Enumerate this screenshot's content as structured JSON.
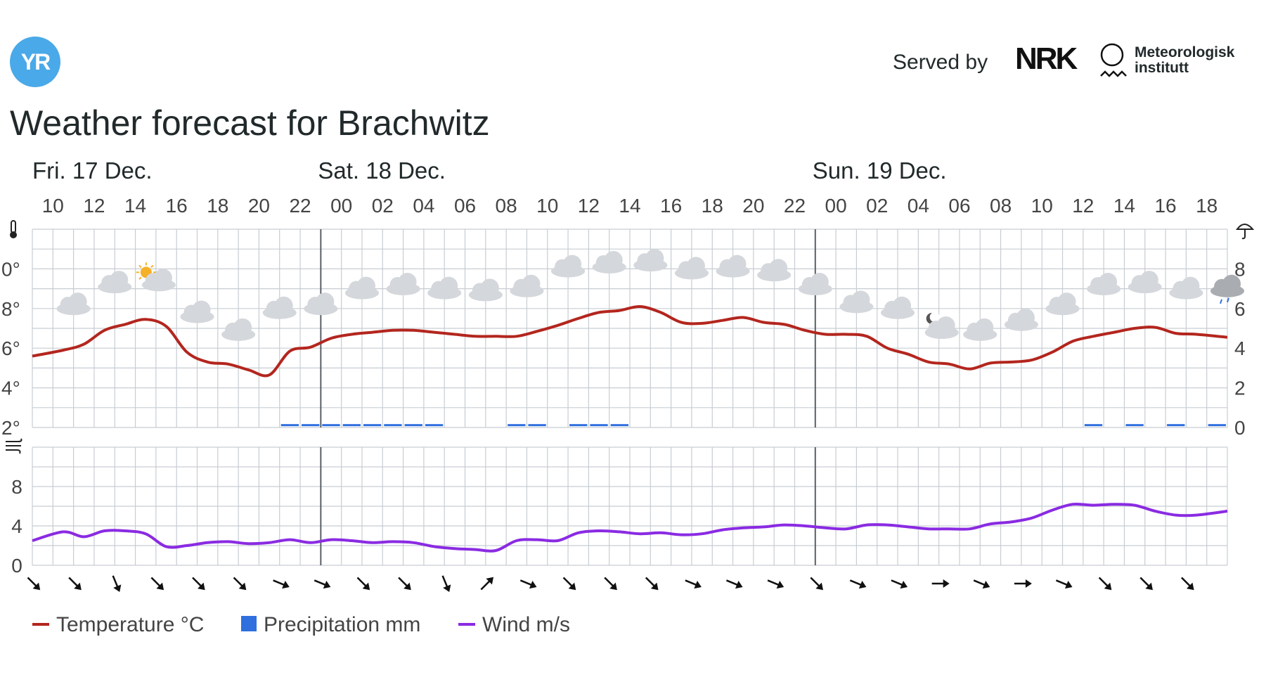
{
  "header": {
    "served_by": "Served by",
    "nrk_logo_text": "NRK",
    "met_line1": "Meteorologisk",
    "met_line2": "institutt",
    "yr_logo_text": "YR",
    "title": "Weather forecast for Brachwitz"
  },
  "colors": {
    "temperature": "#b3261e",
    "precipitation": "#2f6fde",
    "wind": "#8a2be2",
    "grid": "#c7cdd3",
    "yr_blue": "#4aa9e8"
  },
  "chart_data": {
    "type": "line",
    "days": [
      {
        "label": "Fri. 17 Dec.",
        "start_hour_index": 0
      },
      {
        "label": "Sat. 18 Dec.",
        "start_hour_index": 14
      },
      {
        "label": "Sun. 19 Dec.",
        "start_hour_index": 38
      }
    ],
    "hour_ticks": [
      "10",
      "12",
      "14",
      "16",
      "18",
      "20",
      "22",
      "00",
      "02",
      "04",
      "06",
      "08",
      "10",
      "12",
      "14",
      "16",
      "18",
      "20",
      "22",
      "00",
      "02",
      "04",
      "06",
      "08",
      "10",
      "12",
      "14",
      "16",
      "18"
    ],
    "x_start": "Fri 17 Dec 09:00",
    "x_end": "Sun 19 Dec 18:00",
    "temperature": {
      "name": "Temperature °C",
      "left_axis_ticks": [
        "2°",
        "4°",
        "6°",
        "8°",
        "0°"
      ],
      "ylim": [
        2,
        12
      ],
      "values": [
        5.6,
        5.9,
        6.2,
        6.9,
        7.2,
        7.45,
        7.1,
        5.8,
        5.3,
        5.2,
        4.9,
        4.65,
        5.85,
        6.05,
        6.5,
        6.7,
        6.8,
        6.9,
        6.9,
        6.8,
        6.7,
        6.6,
        6.6,
        6.6,
        6.85,
        7.15,
        7.5,
        7.8,
        7.9,
        8.1,
        7.8,
        7.3,
        7.25,
        7.4,
        7.55,
        7.3,
        7.2,
        6.9,
        6.7,
        6.7,
        6.6,
        6.0,
        5.7,
        5.3,
        5.2,
        4.95,
        5.25,
        5.3,
        5.4,
        5.8,
        6.35,
        6.6,
        6.8,
        7.0,
        7.05,
        6.75,
        6.7,
        6.55
      ]
    },
    "precipitation": {
      "name": "Precipitation mm",
      "right_axis_ticks": [
        "0",
        "2",
        "4",
        "6",
        "8"
      ],
      "ylim": [
        0,
        10
      ],
      "values": [
        0,
        0,
        0,
        0,
        0,
        0,
        0,
        0,
        0,
        0,
        0,
        0,
        0.1,
        0.1,
        0.1,
        0.1,
        0.1,
        0.1,
        0.1,
        0.1,
        0,
        0,
        0,
        0.1,
        0.1,
        0,
        0.1,
        0.1,
        0.1,
        0,
        0,
        0,
        0,
        0,
        0,
        0,
        0,
        0,
        0,
        0,
        0,
        0,
        0,
        0,
        0,
        0,
        0,
        0,
        0,
        0,
        0,
        0.1,
        0,
        0.1,
        0,
        0.1,
        0,
        0.1
      ]
    },
    "wind": {
      "name": "Wind m/s",
      "axis_ticks": [
        "0",
        "4",
        "8"
      ],
      "ylim": [
        0,
        12
      ],
      "values": [
        2.5,
        3.4,
        2.9,
        3.5,
        3.5,
        3.2,
        1.9,
        2.0,
        2.3,
        2.4,
        2.2,
        2.3,
        2.6,
        2.3,
        2.6,
        2.5,
        2.3,
        2.4,
        2.3,
        1.9,
        1.7,
        1.6,
        1.5,
        2.5,
        2.6,
        2.5,
        3.3,
        3.5,
        3.4,
        3.2,
        3.3,
        3.1,
        3.2,
        3.6,
        3.8,
        3.9,
        4.1,
        4.0,
        3.8,
        3.7,
        4.1,
        4.1,
        3.9,
        3.7,
        3.7,
        3.7,
        4.2,
        4.4,
        4.8,
        5.6,
        6.2,
        6.1,
        6.2,
        6.1,
        5.5,
        5.1,
        5.1,
        5.5
      ]
    },
    "weather_icons": [
      "cloudy",
      "cloudy",
      "partly-sunny",
      "cloudy",
      "cloudy",
      "cloudy",
      "cloudy",
      "cloudy",
      "cloudy",
      "cloudy",
      "cloudy",
      "cloudy",
      "cloudy",
      "cloudy",
      "cloudy",
      "cloudy",
      "cloudy",
      "cloudy",
      "cloudy",
      "cloudy",
      "cloudy",
      "partly-cloudy-night",
      "cloudy",
      "cloudy",
      "cloudy",
      "cloudy",
      "cloudy",
      "cloudy",
      "light-rain"
    ],
    "weather_icon_levels": [
      8.2,
      9.3,
      9.4,
      7.8,
      6.9,
      8.0,
      8.2,
      9.0,
      9.2,
      9.0,
      8.9,
      9.1,
      10.1,
      10.3,
      10.4,
      10.0,
      10.1,
      9.9,
      9.2,
      8.3,
      8.0,
      7.0,
      6.9,
      7.4,
      8.2,
      9.2,
      9.3,
      9.0,
      9.1
    ],
    "wind_directions": [
      "SE",
      "SE",
      "SSE",
      "SE",
      "SE",
      "SE",
      "ESE",
      "ESE",
      "SE",
      "SE",
      "SSE",
      "NE",
      "ESE",
      "SE",
      "SE",
      "SE",
      "ESE",
      "ESE",
      "ESE",
      "SE",
      "ESE",
      "ESE",
      "E",
      "ESE",
      "E",
      "ESE",
      "SE",
      "SE",
      "SE"
    ],
    "icons": {
      "temperature_axis": "thermometer-icon",
      "precipitation_axis": "umbrella-icon",
      "wind_axis": "wind-icon"
    }
  },
  "legend": {
    "temperature": "Temperature °C",
    "precipitation": "Precipitation mm",
    "wind": "Wind m/s"
  }
}
